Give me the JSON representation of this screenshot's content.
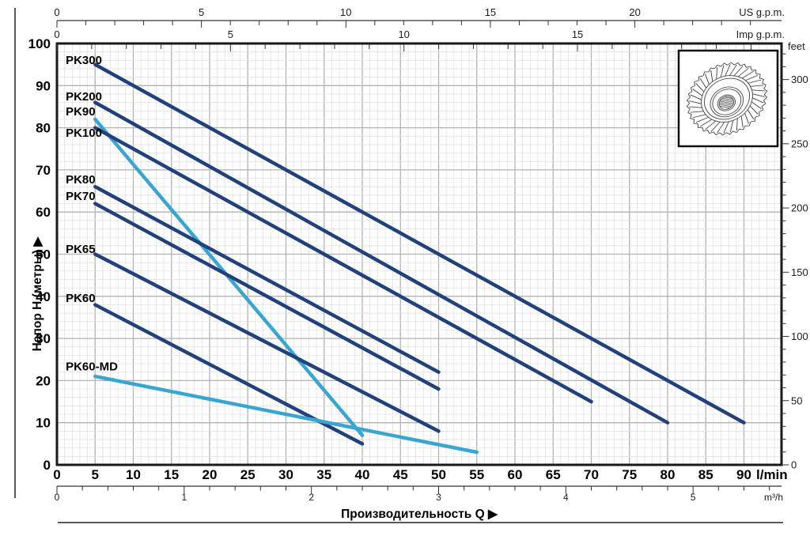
{
  "figure": {
    "x_axis_title": "Производительность Q  ▶",
    "y_axis_title": "Напор H (метры)  ▶"
  },
  "chart_data": {
    "type": "line",
    "description": "Pump performance curves: head H (m) vs flow Q",
    "x_primary": {
      "label": "l/min",
      "ticks": [
        0,
        5,
        10,
        15,
        20,
        25,
        30,
        35,
        40,
        45,
        50,
        55,
        60,
        65,
        70,
        75,
        80,
        85,
        90
      ],
      "range": [
        0,
        94.9
      ]
    },
    "x_secondary_m3h": {
      "label": "m³/h",
      "ticks": [
        0,
        1,
        2,
        3,
        4,
        5
      ]
    },
    "x_top_us_gpm": {
      "label": "US g.p.m.",
      "ticks": [
        0,
        5,
        10,
        15,
        20
      ]
    },
    "x_top_imp_gpm": {
      "label": "Imp g.p.m.",
      "ticks": [
        0,
        5,
        10,
        15
      ]
    },
    "y_primary": {
      "label": "Напор H (метры)",
      "ticks": [
        0,
        10,
        20,
        30,
        40,
        50,
        60,
        70,
        80,
        90,
        100
      ],
      "range": [
        0,
        100
      ]
    },
    "y_secondary": {
      "label": "feet",
      "ticks": [
        0,
        50,
        100,
        150,
        200,
        250,
        300
      ]
    },
    "grid": {
      "minor_x_lmin": 1,
      "minor_y_m": 2,
      "major_x_lmin": 5,
      "major_y_m": 10
    },
    "legend_position": "labels-on-curves",
    "series": [
      {
        "name": "PK300",
        "color": "dark",
        "points": [
          [
            5,
            95
          ],
          [
            90,
            10
          ]
        ],
        "label_pos": [
          1.15,
          96.1
        ]
      },
      {
        "name": "PK200",
        "color": "dark",
        "points": [
          [
            5,
            86
          ],
          [
            80,
            10
          ]
        ],
        "label_pos": [
          1.15,
          87.4
        ]
      },
      {
        "name": "PK90",
        "color": "light",
        "points": [
          [
            5,
            82
          ],
          [
            40,
            7
          ]
        ],
        "label_pos": [
          1.15,
          83.9
        ]
      },
      {
        "name": "PK100",
        "color": "dark",
        "points": [
          [
            5,
            80
          ],
          [
            70,
            15
          ]
        ],
        "label_pos": [
          1.15,
          78.8
        ]
      },
      {
        "name": "PK80",
        "color": "dark",
        "points": [
          [
            5,
            66
          ],
          [
            50,
            22
          ]
        ],
        "label_pos": [
          1.15,
          67.7
        ]
      },
      {
        "name": "PK70",
        "color": "dark",
        "points": [
          [
            5,
            62
          ],
          [
            50,
            18
          ]
        ],
        "label_pos": [
          1.15,
          63.8
        ]
      },
      {
        "name": "PK65",
        "color": "dark",
        "points": [
          [
            5,
            50
          ],
          [
            50,
            8
          ]
        ],
        "label_pos": [
          1.15,
          51.2
        ]
      },
      {
        "name": "PK60",
        "color": "dark",
        "points": [
          [
            5,
            38
          ],
          [
            40,
            5
          ]
        ],
        "label_pos": [
          1.15,
          39.6
        ]
      },
      {
        "name": "PK60-MD",
        "color": "light",
        "points": [
          [
            5,
            21
          ],
          [
            55,
            3
          ]
        ],
        "label_pos": [
          1.15,
          23.4
        ]
      }
    ],
    "colors": {
      "dark_navy": "#21417d",
      "light_blue": "#38a5d3",
      "grid_minor": "#dedede",
      "grid_major": "#b3b3b3",
      "axis": "#1a1a1a"
    }
  }
}
